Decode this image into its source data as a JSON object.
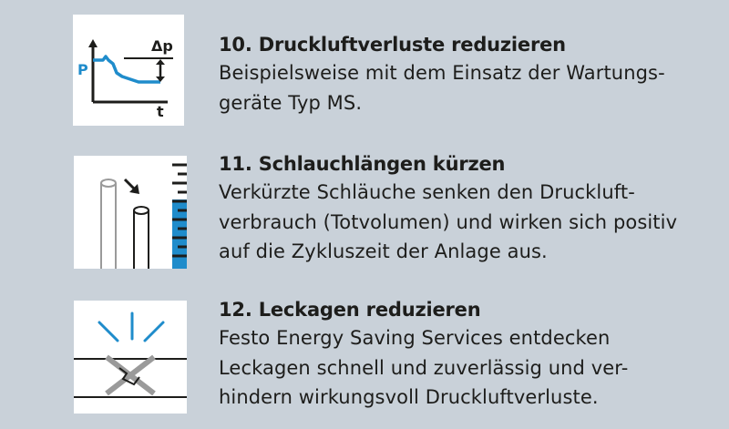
{
  "items": [
    {
      "title": "10. Druckluftverluste reduzieren",
      "lines": [
        "Beispielsweise mit dem Einsatz der Wartungs-",
        "geräte Typ MS."
      ],
      "icon": "pressure-loss-graph-icon",
      "icon_labels": {
        "y": "P",
        "x": "t",
        "delta": "Δp"
      }
    },
    {
      "title": "11. Schlauchlängen kürzen",
      "lines": [
        "Verkürzte Schläuche senken den Druckluft-",
        "verbrauch (Totvolumen) und wirken sich positiv",
        "auf die Zykluszeit der Anlage aus."
      ],
      "icon": "tube-length-icon"
    },
    {
      "title": "12. Leckagen reduzieren",
      "lines": [
        "Festo Energy Saving Services entdecken",
        "Leckagen schnell und zuverlässig und ver-",
        "hindern wirkungsvoll Druckluftverluste."
      ],
      "icon": "leak-icon"
    }
  ],
  "colors": {
    "background": "#c9d1d9",
    "accent_blue": "#1f8ccb",
    "dark": "#1d1d1b",
    "grey": "#9a9a9a"
  }
}
